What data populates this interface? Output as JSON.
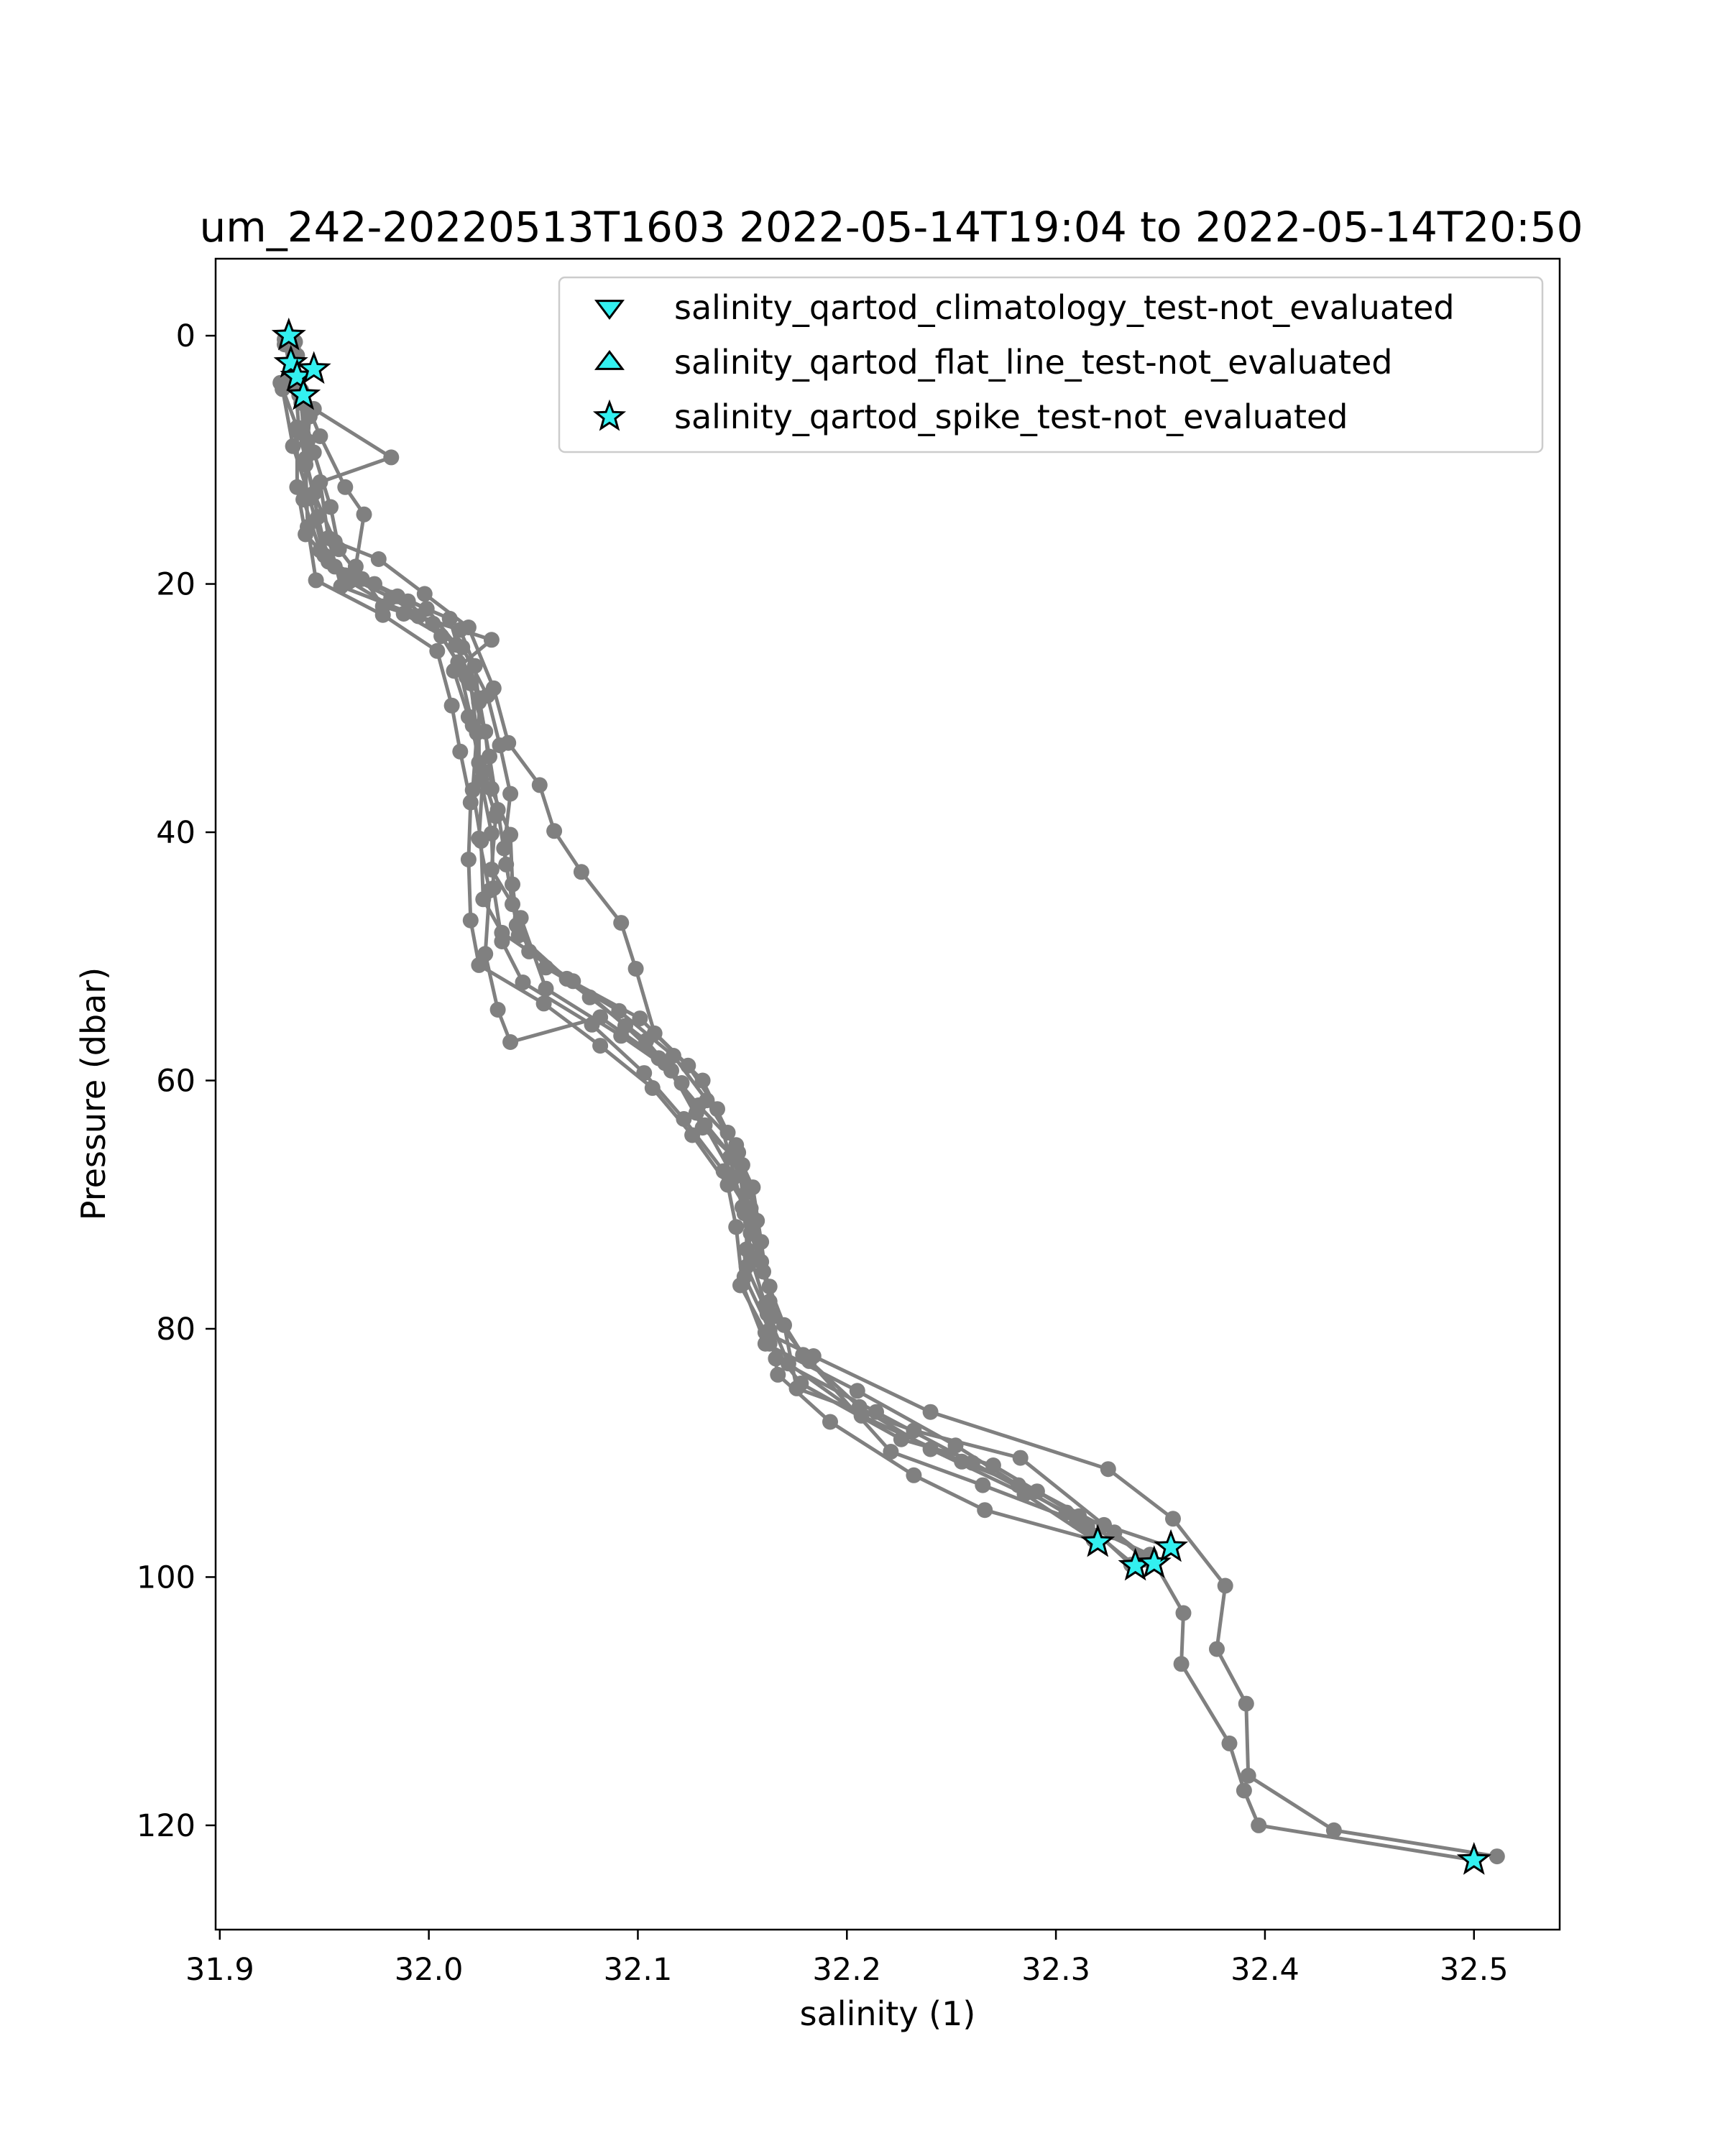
{
  "chart_data": {
    "type": "scatter",
    "title": "um_242-20220513T1603 2022-05-14T19:04 to 2022-05-14T20:50",
    "xlabel": "salinity (1)",
    "ylabel": "Pressure (dbar)",
    "xlim": [
      31.898,
      32.541
    ],
    "ylim": [
      128.4,
      -6.2
    ],
    "y_inverted": true,
    "grid": false,
    "x_ticks": [
      "31.9",
      "32.0",
      "32.1",
      "32.2",
      "32.3",
      "32.4",
      "32.5"
    ],
    "x_tick_values": [
      31.9,
      32.0,
      32.1,
      32.2,
      32.3,
      32.4,
      32.5
    ],
    "y_ticks": [
      "0",
      "20",
      "40",
      "60",
      "80",
      "100",
      "120"
    ],
    "y_tick_values": [
      0,
      20,
      40,
      60,
      80,
      100,
      120
    ],
    "legend_position": "top-right",
    "colors": {
      "profile_line": "#808080",
      "qc_marker_fill": "#33f0f0",
      "qc_marker_edge": "#000000",
      "axes": "#000000"
    },
    "series": [
      {
        "name": "",
        "role": "profile",
        "points": [
          [
            31.933,
            0.0
          ],
          [
            31.935,
            2.4
          ],
          [
            31.945,
            5.9
          ],
          [
            31.982,
            9.8
          ],
          [
            31.948,
            11.8
          ],
          [
            31.952,
            16.3
          ],
          [
            31.958,
            20.2
          ],
          [
            31.995,
            22.6
          ],
          [
            32.03,
            24.5
          ],
          [
            32.012,
            27.0
          ],
          [
            32.019,
            30.7
          ],
          [
            32.026,
            35.1
          ],
          [
            32.024,
            40.5
          ],
          [
            32.029,
            44.7
          ],
          [
            32.027,
            49.8
          ],
          [
            32.033,
            54.3
          ],
          [
            32.039,
            56.9
          ],
          [
            32.082,
            54.9
          ],
          [
            32.11,
            58.2
          ],
          [
            32.129,
            62.0
          ],
          [
            32.147,
            65.2
          ],
          [
            32.152,
            69.0
          ],
          [
            32.152,
            73.6
          ],
          [
            32.149,
            76.5
          ],
          [
            32.161,
            80.3
          ],
          [
            32.184,
            82.2
          ],
          [
            32.24,
            86.7
          ],
          [
            32.325,
            91.3
          ],
          [
            32.356,
            95.3
          ],
          [
            32.381,
            100.7
          ],
          [
            32.377,
            105.8
          ],
          [
            32.391,
            110.2
          ],
          [
            32.392,
            116.0
          ],
          [
            32.433,
            120.4
          ],
          [
            32.511,
            122.5
          ]
        ]
      },
      {
        "name": "",
        "role": "profile",
        "points": [
          [
            31.936,
            0.5
          ],
          [
            31.939,
            4.4
          ],
          [
            31.948,
            8.1
          ],
          [
            31.96,
            12.2
          ],
          [
            31.969,
            14.4
          ],
          [
            31.965,
            18.6
          ],
          [
            31.978,
            21.8
          ],
          [
            32.015,
            23.7
          ],
          [
            32.022,
            26.6
          ],
          [
            32.024,
            29.5
          ],
          [
            32.024,
            34.4
          ],
          [
            32.032,
            38.7
          ],
          [
            32.03,
            43.0
          ],
          [
            32.044,
            46.9
          ],
          [
            32.056,
            52.6
          ],
          [
            32.092,
            56.4
          ],
          [
            32.116,
            59.2
          ],
          [
            32.131,
            63.8
          ],
          [
            32.15,
            66.8
          ],
          [
            32.157,
            71.3
          ],
          [
            32.159,
            74.6
          ],
          [
            32.165,
            79.0
          ],
          [
            32.182,
            82.6
          ],
          [
            32.221,
            89.9
          ],
          [
            32.265,
            92.6
          ],
          [
            32.31,
            95.5
          ],
          [
            32.345,
            98.2
          ],
          [
            32.361,
            102.9
          ],
          [
            32.36,
            107.0
          ],
          [
            32.383,
            113.4
          ],
          [
            32.39,
            117.2
          ],
          [
            32.397,
            120.0
          ],
          [
            32.5,
            122.8
          ]
        ]
      },
      {
        "name": "",
        "role": "profile",
        "points": [
          [
            31.931,
            0.3
          ],
          [
            31.934,
            3.2
          ],
          [
            31.943,
            6.5
          ],
          [
            31.941,
            10.4
          ],
          [
            31.942,
            15.4
          ],
          [
            31.946,
            19.7
          ],
          [
            31.978,
            22.5
          ],
          [
            32.004,
            25.4
          ],
          [
            32.011,
            29.8
          ],
          [
            32.015,
            33.5
          ],
          [
            32.02,
            37.6
          ],
          [
            32.019,
            42.2
          ],
          [
            32.02,
            47.1
          ],
          [
            32.024,
            50.7
          ],
          [
            32.055,
            53.8
          ],
          [
            32.082,
            57.2
          ],
          [
            32.107,
            60.6
          ],
          [
            32.126,
            64.4
          ],
          [
            32.143,
            68.4
          ],
          [
            32.147,
            71.8
          ],
          [
            32.15,
            76.4
          ],
          [
            32.161,
            81.2
          ],
          [
            32.205,
            85.0
          ],
          [
            32.252,
            89.4
          ],
          [
            32.282,
            92.6
          ],
          [
            32.315,
            95.9
          ],
          [
            32.338,
            99.1
          ]
        ]
      },
      {
        "name": "",
        "role": "profile",
        "points": [
          [
            31.935,
            1.0
          ],
          [
            31.938,
            4.8
          ],
          [
            31.945,
            9.4
          ],
          [
            31.953,
            13.8
          ],
          [
            31.957,
            17.2
          ],
          [
            31.968,
            19.6
          ],
          [
            31.99,
            21.4
          ],
          [
            32.006,
            24.2
          ],
          [
            32.02,
            28.0
          ],
          [
            32.023,
            32.0
          ],
          [
            32.021,
            36.6
          ],
          [
            32.025,
            40.7
          ],
          [
            32.026,
            45.4
          ],
          [
            32.035,
            48.1
          ],
          [
            32.069,
            52.0
          ],
          [
            32.094,
            55.6
          ],
          [
            32.113,
            58.6
          ],
          [
            32.128,
            62.6
          ],
          [
            32.145,
            66.1
          ],
          [
            32.154,
            70.3
          ],
          [
            32.152,
            75.0
          ],
          [
            32.162,
            78.8
          ],
          [
            32.172,
            82.8
          ],
          [
            32.207,
            87.0
          ],
          [
            32.255,
            90.7
          ],
          [
            32.291,
            93.1
          ],
          [
            32.328,
            96.4
          ],
          [
            32.347,
            98.9
          ]
        ]
      },
      {
        "name": "",
        "role": "profile",
        "points": [
          [
            31.929,
            3.8
          ],
          [
            31.937,
            7.4
          ],
          [
            31.937,
            12.2
          ],
          [
            31.941,
            16.0
          ],
          [
            31.955,
            18.6
          ],
          [
            31.985,
            21.0
          ],
          [
            32.01,
            22.8
          ],
          [
            32.018,
            27.5
          ],
          [
            32.027,
            31.9
          ],
          [
            32.03,
            36.5
          ],
          [
            32.039,
            40.2
          ],
          [
            32.04,
            44.2
          ],
          [
            32.043,
            48.3
          ],
          [
            32.066,
            51.8
          ],
          [
            32.101,
            55.0
          ],
          [
            32.124,
            58.8
          ],
          [
            32.138,
            62.3
          ],
          [
            32.144,
            66.2
          ],
          [
            32.15,
            70.2
          ],
          [
            32.154,
            74.2
          ],
          [
            32.161,
            78.1
          ],
          [
            32.166,
            82.4
          ],
          [
            32.214,
            86.7
          ],
          [
            32.26,
            90.8
          ],
          [
            32.305,
            94.8
          ],
          [
            32.355,
            97.6
          ]
        ]
      },
      {
        "name": "",
        "role": "profile",
        "points": [
          [
            31.931,
            0.7
          ],
          [
            31.937,
            4.1
          ],
          [
            31.942,
            8.5
          ],
          [
            31.94,
            13.2
          ],
          [
            31.948,
            17.3
          ],
          [
            31.962,
            19.8
          ],
          [
            31.988,
            22.4
          ],
          [
            32.016,
            25.1
          ],
          [
            32.028,
            29.0
          ],
          [
            32.034,
            33.0
          ],
          [
            32.039,
            36.9
          ],
          [
            32.036,
            41.3
          ],
          [
            32.04,
            45.8
          ],
          [
            32.048,
            49.6
          ],
          [
            32.077,
            53.3
          ],
          [
            32.104,
            56.8
          ],
          [
            32.121,
            60.2
          ],
          [
            32.132,
            63.6
          ],
          [
            32.146,
            67.8
          ],
          [
            32.154,
            72.3
          ],
          [
            32.163,
            76.6
          ],
          [
            32.163,
            81.2
          ],
          [
            32.178,
            84.4
          ],
          [
            32.226,
            88.9
          ],
          [
            32.27,
            91.0
          ],
          [
            32.311,
            95.1
          ],
          [
            32.336,
            99.0
          ]
        ]
      },
      {
        "name": "",
        "role": "profile",
        "points": [
          [
            31.934,
            0.2
          ],
          [
            31.936,
            3.6
          ],
          [
            31.938,
            7.8
          ],
          [
            31.945,
            12.7
          ],
          [
            31.955,
            16.6
          ],
          [
            31.976,
            18.0
          ],
          [
            31.998,
            20.8
          ],
          [
            32.019,
            23.5
          ],
          [
            32.031,
            28.4
          ],
          [
            32.038,
            32.8
          ],
          [
            32.053,
            36.2
          ],
          [
            32.06,
            39.9
          ],
          [
            32.073,
            43.2
          ],
          [
            32.092,
            47.3
          ],
          [
            32.099,
            51.0
          ],
          [
            32.108,
            56.2
          ],
          [
            32.131,
            60.0
          ],
          [
            32.143,
            64.2
          ],
          [
            32.155,
            68.6
          ],
          [
            32.159,
            73.0
          ],
          [
            32.163,
            77.8
          ],
          [
            32.179,
            82.1
          ],
          [
            32.206,
            86.3
          ],
          [
            32.24,
            89.7
          ],
          [
            32.285,
            93.3
          ],
          [
            32.32,
            97.2
          ]
        ]
      },
      {
        "name": "",
        "role": "profile",
        "points": [
          [
            31.93,
            4.3
          ],
          [
            31.935,
            8.9
          ],
          [
            31.943,
            13.1
          ],
          [
            31.95,
            17.7
          ],
          [
            31.96,
            19.3
          ],
          [
            31.982,
            21.1
          ],
          [
            32.002,
            23.2
          ],
          [
            32.014,
            26.3
          ],
          [
            32.021,
            31.4
          ],
          [
            32.025,
            35.8
          ],
          [
            32.03,
            40.1
          ],
          [
            32.031,
            44.5
          ],
          [
            32.035,
            48.8
          ],
          [
            32.045,
            52.1
          ],
          [
            32.078,
            55.5
          ],
          [
            32.103,
            59.4
          ],
          [
            32.122,
            63.1
          ],
          [
            32.141,
            67.3
          ],
          [
            32.155,
            71.1
          ],
          [
            32.151,
            75.8
          ],
          [
            32.163,
            80.1
          ],
          [
            32.167,
            83.7
          ],
          [
            32.192,
            87.5
          ],
          [
            32.232,
            91.8
          ],
          [
            32.266,
            94.6
          ],
          [
            32.318,
            97.0
          ]
        ]
      },
      {
        "name": "",
        "role": "profile",
        "points": [
          [
            31.937,
            1.6
          ],
          [
            31.939,
            5.4
          ],
          [
            31.941,
            9.9
          ],
          [
            31.947,
            14.6
          ],
          [
            31.952,
            18.2
          ],
          [
            31.974,
            20.0
          ],
          [
            31.999,
            22.0
          ],
          [
            32.013,
            24.9
          ],
          [
            32.024,
            29.2
          ],
          [
            32.029,
            33.9
          ],
          [
            32.033,
            38.2
          ],
          [
            32.037,
            42.6
          ],
          [
            32.042,
            47.5
          ],
          [
            32.056,
            50.9
          ],
          [
            32.091,
            54.4
          ],
          [
            32.117,
            58.0
          ],
          [
            32.133,
            61.6
          ],
          [
            32.148,
            65.8
          ],
          [
            32.151,
            70.7
          ],
          [
            32.16,
            75.4
          ],
          [
            32.17,
            79.7
          ],
          [
            32.176,
            84.8
          ],
          [
            32.232,
            88.2
          ],
          [
            32.283,
            90.4
          ],
          [
            32.323,
            95.8
          ],
          [
            32.343,
            98.6
          ]
        ]
      },
      {
        "name": "salinity_qartod_climatology_test-not_evaluated",
        "role": "qc",
        "marker": "triangle_down",
        "points": []
      },
      {
        "name": "salinity_qartod_flat_line_test-not_evaluated",
        "role": "qc",
        "marker": "triangle_up",
        "points": []
      },
      {
        "name": "salinity_qartod_spike_test-not_evaluated",
        "role": "qc",
        "marker": "star",
        "points": [
          [
            31.933,
            0.0
          ],
          [
            31.934,
            2.2
          ],
          [
            31.937,
            3.3
          ],
          [
            31.945,
            2.7
          ],
          [
            31.94,
            4.8
          ],
          [
            32.32,
            97.2
          ],
          [
            32.338,
            99.1
          ],
          [
            32.347,
            98.9
          ],
          [
            32.355,
            97.6
          ],
          [
            32.5,
            122.8
          ]
        ]
      }
    ]
  }
}
